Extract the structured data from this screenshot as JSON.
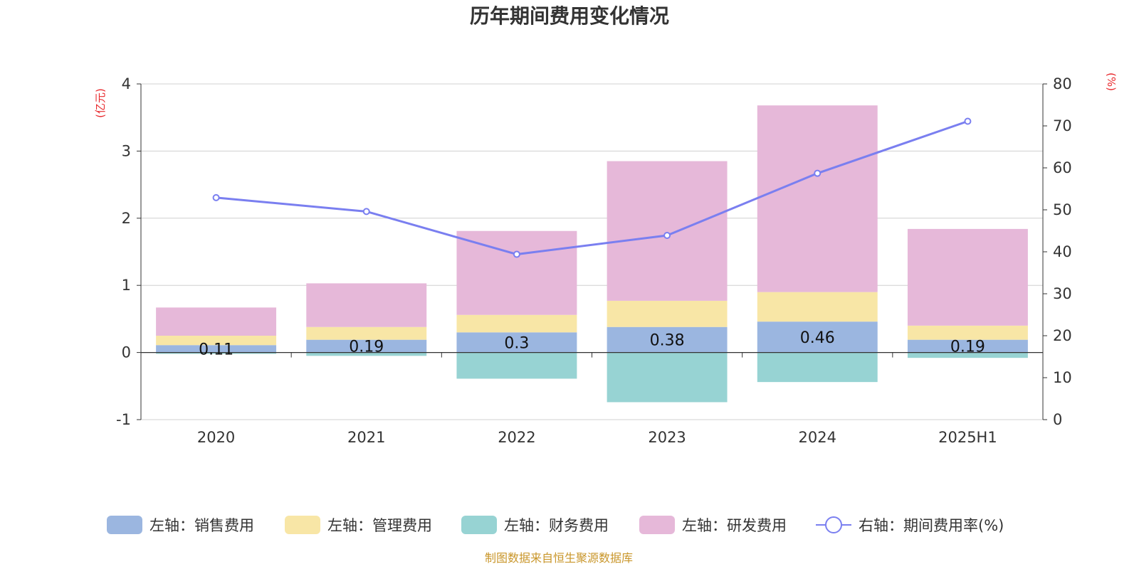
{
  "chart_data": {
    "type": "bar",
    "title": "历年期间费用变化情况",
    "categories": [
      "2020",
      "2021",
      "2022",
      "2023",
      "2024",
      "2025H1"
    ],
    "y_left": {
      "unit": "(亿元)",
      "ylim": [
        -1,
        4
      ],
      "ticks": [
        -1,
        0,
        1,
        2,
        3,
        4
      ]
    },
    "y_right": {
      "unit": "(%)",
      "ylim": [
        0,
        80
      ],
      "ticks": [
        0,
        10,
        20,
        30,
        40,
        50,
        60,
        70,
        80
      ]
    },
    "series": [
      {
        "name": "左轴：销售费用",
        "kind": "bar",
        "axis": "left",
        "color": "#9bb6e0",
        "values": [
          0.11,
          0.19,
          0.3,
          0.38,
          0.46,
          0.19
        ],
        "labels": [
          "0.11",
          "0.19",
          "0.3",
          "0.38",
          "0.46",
          "0.19"
        ]
      },
      {
        "name": "左轴：管理费用",
        "kind": "bar",
        "axis": "left",
        "color": "#f8e6a6",
        "values": [
          0.14,
          0.19,
          0.26,
          0.39,
          0.44,
          0.21
        ]
      },
      {
        "name": "左轴：财务费用",
        "kind": "bar",
        "axis": "left",
        "color": "#97d3d3",
        "values": [
          -0.02,
          -0.05,
          -0.39,
          -0.74,
          -0.44,
          -0.08
        ]
      },
      {
        "name": "左轴：研发费用",
        "kind": "bar",
        "axis": "left",
        "color": "#e6b8d9",
        "values": [
          0.42,
          0.65,
          1.25,
          2.08,
          2.78,
          1.44
        ]
      },
      {
        "name": "右轴：期间费用率(%)",
        "kind": "line",
        "axis": "right",
        "color": "#7a7ff0",
        "values": [
          52.9,
          49.6,
          39.4,
          43.9,
          58.7,
          71.1
        ]
      }
    ],
    "grid": true,
    "legend_position": "bottom"
  },
  "source_note": "制图数据来自恒生聚源数据库"
}
